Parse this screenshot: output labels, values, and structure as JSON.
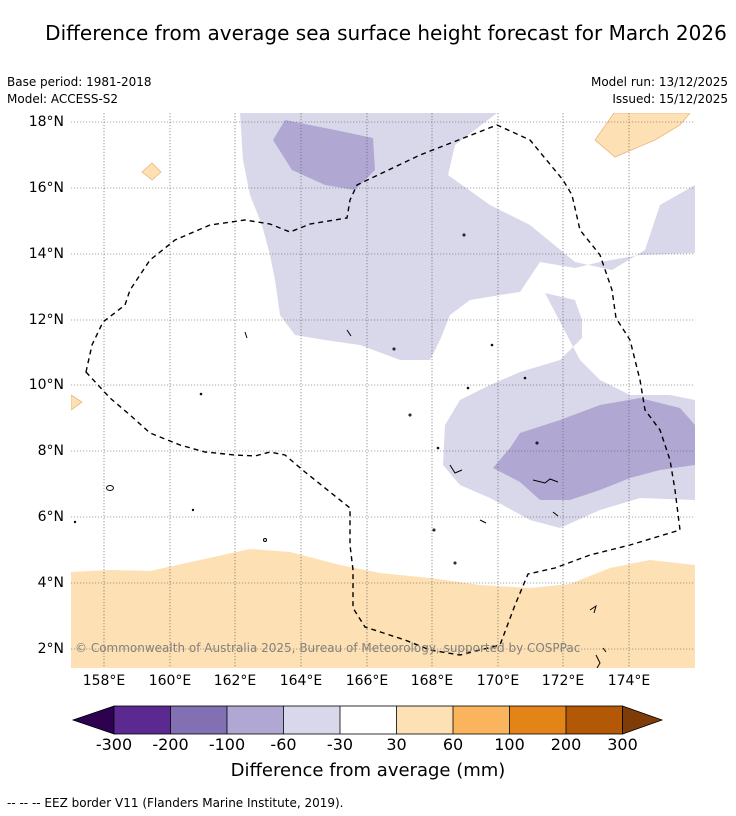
{
  "title": "Difference from average sea surface height forecast for March 2026",
  "meta": {
    "base_period": "Base period: 1981-2018",
    "model": "Model: ACCESS-S2",
    "model_run": "Model run: 13/12/2025",
    "issued": "Issued: 15/12/2025"
  },
  "map": {
    "lat_labels": [
      "18°N",
      "16°N",
      "14°N",
      "12°N",
      "10°N",
      "8°N",
      "6°N",
      "4°N",
      "2°N"
    ],
    "lon_labels": [
      "158°E",
      "160°E",
      "162°E",
      "164°E",
      "166°E",
      "168°E",
      "170°E",
      "172°E",
      "174°E"
    ],
    "copyright": "© Commonwealth of Australia 2025, Bureau of Meteorology, supported by COSPPac"
  },
  "colorbar": {
    "title": "Difference from average (mm)",
    "tick_labels": [
      "-300",
      "-200",
      "-100",
      "-60",
      "-30",
      "30",
      "60",
      "100",
      "200",
      "300"
    ],
    "colors": {
      "below_min": "#2d0050",
      "bins": [
        "#5b2a91",
        "#8370b2",
        "#b0a8d3",
        "#d8d8ea",
        "#ffffff",
        "#fde0b4",
        "#fbb45e",
        "#e28418",
        "#b35806"
      ],
      "above_max": "#7f3b08"
    }
  },
  "footnote": "--  --  -- EEZ border V11 (Flanders Marine Institute, 2019)."
}
